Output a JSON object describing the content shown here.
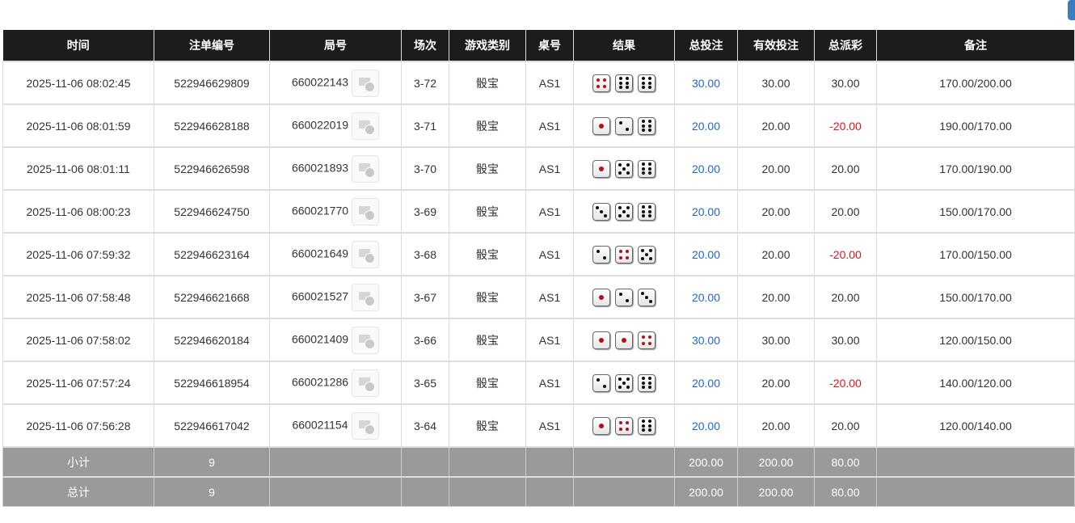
{
  "accent_color": "#3a7dc0",
  "colors": {
    "header_bg": "#1c1c1c",
    "positive": "#2266cc",
    "negative": "#e0141e",
    "footer_bg": "#9a9a9a"
  },
  "headers": [
    "时间",
    "注单编号",
    "局号",
    "场次",
    "游戏类别",
    "桌号",
    "结果",
    "总投注",
    "有效投注",
    "总派彩",
    "备注"
  ],
  "rows": [
    {
      "time": "2025-11-06 08:02:45",
      "bet_id": "522946629809",
      "round": "660022143",
      "session": "3-72",
      "game": "骰宝",
      "table": "AS1",
      "dice": [
        4,
        6,
        6
      ],
      "total_bet": "30.00",
      "valid_bet": "30.00",
      "payout": "30.00",
      "payout_negative": false,
      "note": "170.00/200.00"
    },
    {
      "time": "2025-11-06 08:01:59",
      "bet_id": "522946628188",
      "round": "660022019",
      "session": "3-71",
      "game": "骰宝",
      "table": "AS1",
      "dice": [
        1,
        2,
        6
      ],
      "total_bet": "20.00",
      "valid_bet": "20.00",
      "payout": "-20.00",
      "payout_negative": true,
      "note": "190.00/170.00"
    },
    {
      "time": "2025-11-06 08:01:11",
      "bet_id": "522946626598",
      "round": "660021893",
      "session": "3-70",
      "game": "骰宝",
      "table": "AS1",
      "dice": [
        1,
        5,
        6
      ],
      "total_bet": "20.00",
      "valid_bet": "20.00",
      "payout": "20.00",
      "payout_negative": false,
      "note": "170.00/190.00"
    },
    {
      "time": "2025-11-06 08:00:23",
      "bet_id": "522946624750",
      "round": "660021770",
      "session": "3-69",
      "game": "骰宝",
      "table": "AS1",
      "dice": [
        3,
        5,
        6
      ],
      "total_bet": "20.00",
      "valid_bet": "20.00",
      "payout": "20.00",
      "payout_negative": false,
      "note": "150.00/170.00"
    },
    {
      "time": "2025-11-06 07:59:32",
      "bet_id": "522946623164",
      "round": "660021649",
      "session": "3-68",
      "game": "骰宝",
      "table": "AS1",
      "dice": [
        2,
        4,
        5
      ],
      "total_bet": "20.00",
      "valid_bet": "20.00",
      "payout": "-20.00",
      "payout_negative": true,
      "note": "170.00/150.00"
    },
    {
      "time": "2025-11-06 07:58:48",
      "bet_id": "522946621668",
      "round": "660021527",
      "session": "3-67",
      "game": "骰宝",
      "table": "AS1",
      "dice": [
        1,
        2,
        3
      ],
      "total_bet": "20.00",
      "valid_bet": "20.00",
      "payout": "20.00",
      "payout_negative": false,
      "note": "150.00/170.00"
    },
    {
      "time": "2025-11-06 07:58:02",
      "bet_id": "522946620184",
      "round": "660021409",
      "session": "3-66",
      "game": "骰宝",
      "table": "AS1",
      "dice": [
        1,
        1,
        4
      ],
      "total_bet": "30.00",
      "valid_bet": "30.00",
      "payout": "30.00",
      "payout_negative": false,
      "note": "120.00/150.00"
    },
    {
      "time": "2025-11-06 07:57:24",
      "bet_id": "522946618954",
      "round": "660021286",
      "session": "3-65",
      "game": "骰宝",
      "table": "AS1",
      "dice": [
        2,
        5,
        6
      ],
      "total_bet": "20.00",
      "valid_bet": "20.00",
      "payout": "-20.00",
      "payout_negative": true,
      "note": "140.00/120.00"
    },
    {
      "time": "2025-11-06 07:56:28",
      "bet_id": "522946617042",
      "round": "660021154",
      "session": "3-64",
      "game": "骰宝",
      "table": "AS1",
      "dice": [
        1,
        4,
        6
      ],
      "total_bet": "20.00",
      "valid_bet": "20.00",
      "payout": "20.00",
      "payout_negative": false,
      "note": "120.00/140.00"
    }
  ],
  "footer": [
    {
      "label": "小计",
      "count": "9",
      "total_bet": "200.00",
      "valid_bet": "200.00",
      "payout": "80.00"
    },
    {
      "label": "总计",
      "count": "9",
      "total_bet": "200.00",
      "valid_bet": "200.00",
      "payout": "80.00"
    }
  ]
}
